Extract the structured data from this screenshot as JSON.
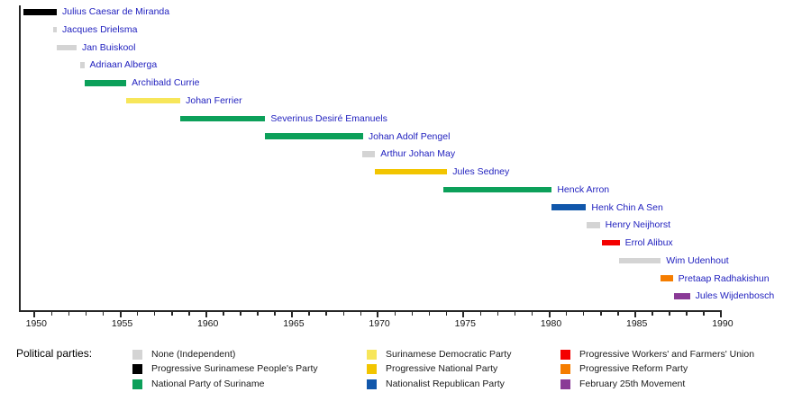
{
  "chart_data": {
    "type": "bar",
    "subtype": "horizontal-timeline-gantt",
    "title": "",
    "xlabel": "",
    "ylabel": "",
    "grid": false,
    "legend_position": "bottom",
    "legend_title": "Political parties:",
    "x_axis": {
      "plot_start_year": 1949.1,
      "plot_end_year": 1990,
      "tick_min": 1950,
      "tick_max": 1990,
      "minor_step": 1,
      "major_step": 5,
      "major_labels": [
        "1950",
        "1955",
        "1960",
        "1965",
        "1970",
        "1975",
        "1980",
        "1985",
        "1990"
      ]
    },
    "parties": {
      "none": {
        "label": "None (Independent)",
        "color": "#d4d4d4"
      },
      "psv": {
        "label": "Progressive Surinamese People's Party",
        "color": "#000000"
      },
      "nps": {
        "label": "National Party of Suriname",
        "color": "#0ca05a"
      },
      "sdp": {
        "label": "Surinamese Democratic Party",
        "color": "#f7e65a"
      },
      "pnp": {
        "label": "Progressive National Party",
        "color": "#f2c500"
      },
      "pnr": {
        "label": "Nationalist Republican Party",
        "color": "#1157ab"
      },
      "pwfu": {
        "label": "Progressive Workers' and Farmers' Union",
        "color": "#f40000"
      },
      "prp": {
        "label": "Progressive Reform Party",
        "color": "#f57d00"
      },
      "f25m": {
        "label": "February 25th Movement",
        "color": "#8a3a96"
      }
    },
    "legend_columns": [
      [
        "none",
        "psv",
        "nps"
      ],
      [
        "sdp",
        "pnp",
        "pnr"
      ],
      [
        "pwfu",
        "prp",
        "f25m"
      ]
    ],
    "people": [
      {
        "name": "Julius Caesar de Miranda",
        "party": "psv",
        "start": 1949.35,
        "end": 1951.3
      },
      {
        "name": "Jacques Drielsma",
        "party": "none",
        "start": 1951.1,
        "end": 1951.3
      },
      {
        "name": "Jan Buiskool",
        "party": "none",
        "start": 1951.3,
        "end": 1952.45
      },
      {
        "name": "Adriaan Alberga",
        "party": "none",
        "start": 1952.65,
        "end": 1952.9
      },
      {
        "name": "Archibald Currie",
        "party": "nps",
        "start": 1952.9,
        "end": 1955.35
      },
      {
        "name": "Johan Ferrier",
        "party": "sdp",
        "start": 1955.35,
        "end": 1958.5
      },
      {
        "name": "Severinus Desiré Emanuels",
        "party": "nps",
        "start": 1958.5,
        "end": 1963.45
      },
      {
        "name": "Johan Adolf Pengel",
        "party": "nps",
        "start": 1963.45,
        "end": 1969.15
      },
      {
        "name": "Arthur Johan May",
        "party": "none",
        "start": 1969.1,
        "end": 1969.85
      },
      {
        "name": "Jules Sedney",
        "party": "pnp",
        "start": 1969.85,
        "end": 1974.05
      },
      {
        "name": "Henck Arron",
        "party": "nps",
        "start": 1973.85,
        "end": 1980.15
      },
      {
        "name": "Henk Chin A Sen",
        "party": "pnr",
        "start": 1980.15,
        "end": 1982.15
      },
      {
        "name": "Henry Neijhorst",
        "party": "none",
        "start": 1982.2,
        "end": 1982.95
      },
      {
        "name": "Errol Alibux",
        "party": "pwfu",
        "start": 1983.05,
        "end": 1984.1
      },
      {
        "name": "Wim Udenhout",
        "party": "none",
        "start": 1984.05,
        "end": 1986.5
      },
      {
        "name": "Pretaap Radhakishun",
        "party": "prp",
        "start": 1986.5,
        "end": 1987.2
      },
      {
        "name": "Jules Wijdenbosch",
        "party": "f25m",
        "start": 1987.3,
        "end": 1988.2
      }
    ]
  }
}
